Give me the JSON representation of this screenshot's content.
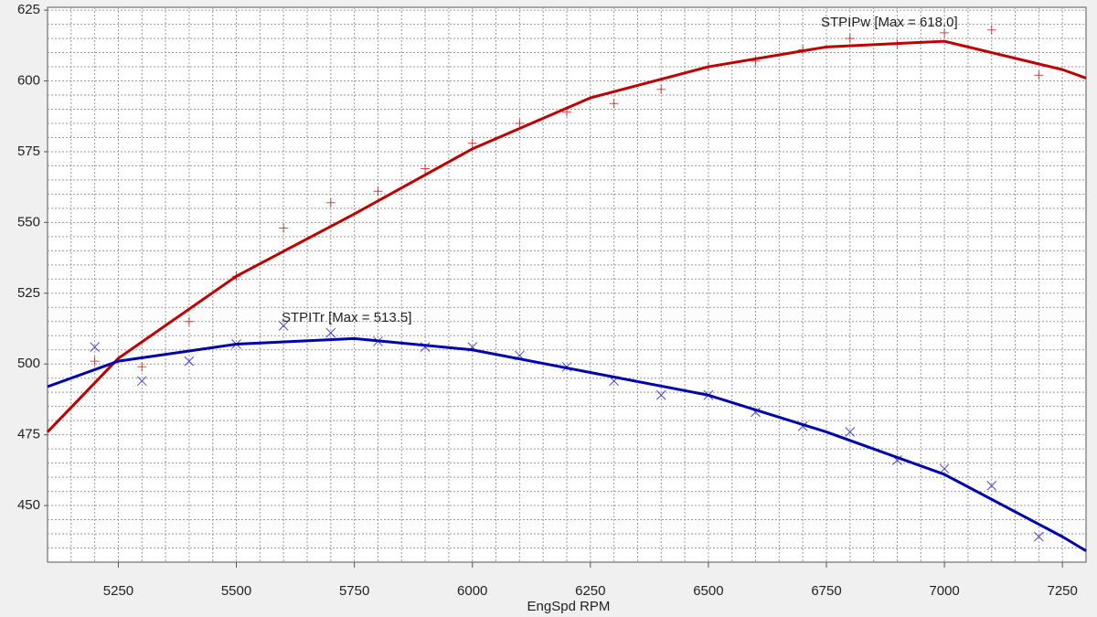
{
  "chart_data": {
    "type": "dyno",
    "x_label": "EngSpd RPM",
    "xlim": [
      5100,
      7300
    ],
    "xticks": [
      5250,
      5500,
      5750,
      6000,
      6250,
      6500,
      6750,
      7000,
      7250
    ],
    "ylim": [
      430,
      626
    ],
    "yticks": [
      450,
      475,
      500,
      525,
      550,
      575,
      600,
      625
    ],
    "grid": true,
    "x": [
      5200,
      5300,
      5400,
      5500,
      5600,
      5700,
      5800,
      5900,
      6000,
      6100,
      6200,
      6300,
      6400,
      6500,
      6600,
      6700,
      6800,
      6900,
      7000,
      7100,
      7200
    ],
    "fit_x": [
      5100,
      5250,
      5500,
      5750,
      6000,
      6250,
      6500,
      6750,
      7000,
      7250,
      7300
    ],
    "series": [
      {
        "name": "STPIPw [Max = 618.0]",
        "color": "#c00000",
        "marker": "+",
        "values": [
          501,
          499,
          515,
          531,
          548,
          557,
          561,
          569,
          578,
          585,
          589,
          592,
          597,
          605,
          607,
          611,
          615,
          613,
          617,
          618,
          602
        ],
        "fit_values": [
          476,
          502,
          531,
          553,
          576,
          594,
          605,
          612,
          614,
          604,
          601
        ]
      },
      {
        "name": "STPITr [Max = 513.5]",
        "color": "#0000b0",
        "marker": "x",
        "values": [
          506,
          494,
          501,
          507,
          513.5,
          511,
          508,
          506,
          506,
          503,
          499,
          494,
          489,
          489,
          483,
          478,
          476,
          466,
          463,
          457,
          439
        ],
        "fit_values": [
          492,
          501,
          507,
          509,
          505,
          497,
          489,
          476,
          461,
          439,
          434
        ]
      }
    ]
  }
}
